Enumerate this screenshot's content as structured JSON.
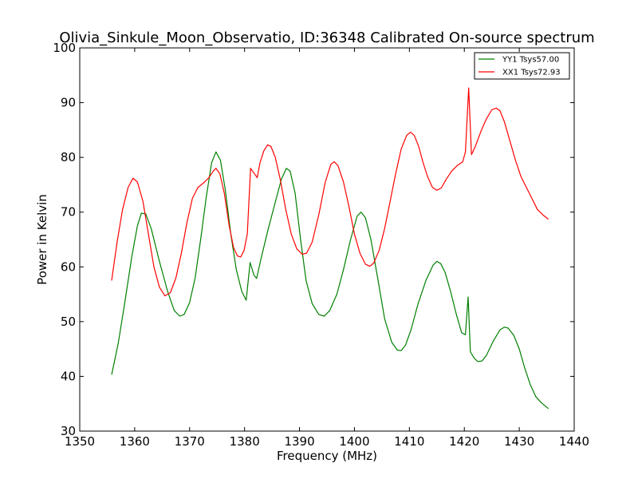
{
  "chart_data": {
    "type": "line",
    "title": "Olivia_Sinkule_Moon_Observatio, ID:36348 Calibrated On-source spectrum",
    "xlabel": "Frequency (MHz)",
    "ylabel": "Power in Kelvin",
    "xlim": [
      1350,
      1440
    ],
    "ylim": [
      30,
      100
    ],
    "xticks": [
      "1350",
      "1360",
      "1370",
      "1380",
      "1390",
      "1400",
      "1410",
      "1420",
      "1430",
      "1440"
    ],
    "yticks": [
      "30",
      "40",
      "50",
      "60",
      "70",
      "80",
      "90",
      "100"
    ],
    "grid": false,
    "legend_position": "top-right",
    "series": [
      {
        "name": "YY1 Tsys57.00",
        "color": "#008000",
        "points": [
          [
            1355.8,
            40.3
          ],
          [
            1357,
            46
          ],
          [
            1358.2,
            53.5
          ],
          [
            1359.5,
            62
          ],
          [
            1360.5,
            67.5
          ],
          [
            1361.2,
            69.8
          ],
          [
            1362,
            69.7
          ],
          [
            1363,
            67
          ],
          [
            1364.5,
            61
          ],
          [
            1366,
            55.5
          ],
          [
            1367.2,
            52
          ],
          [
            1368.2,
            51
          ],
          [
            1369,
            51.3
          ],
          [
            1370,
            53.5
          ],
          [
            1371,
            58
          ],
          [
            1372,
            65
          ],
          [
            1373,
            72.5
          ],
          [
            1374,
            79
          ],
          [
            1374.8,
            81
          ],
          [
            1375.6,
            79.5
          ],
          [
            1376.5,
            74
          ],
          [
            1377.5,
            66
          ],
          [
            1378.5,
            59.5
          ],
          [
            1379.5,
            55.5
          ],
          [
            1380.3,
            53.9
          ],
          [
            1381,
            60.8
          ],
          [
            1381.7,
            58.5
          ],
          [
            1382.2,
            57.9
          ],
          [
            1383,
            61.5
          ],
          [
            1384.2,
            66.5
          ],
          [
            1385.5,
            71.5
          ],
          [
            1386.7,
            76
          ],
          [
            1387.6,
            78
          ],
          [
            1388.3,
            77.5
          ],
          [
            1389.2,
            73.5
          ],
          [
            1390.2,
            65
          ],
          [
            1391.2,
            57.5
          ],
          [
            1392.3,
            53.3
          ],
          [
            1393.5,
            51.3
          ],
          [
            1394.5,
            51
          ],
          [
            1395.5,
            52
          ],
          [
            1396.8,
            55
          ],
          [
            1398,
            59.5
          ],
          [
            1399.3,
            65
          ],
          [
            1400.5,
            69.3
          ],
          [
            1401.2,
            70
          ],
          [
            1402,
            69
          ],
          [
            1403,
            65
          ],
          [
            1404.3,
            57.5
          ],
          [
            1405.5,
            50.5
          ],
          [
            1406.8,
            46.2
          ],
          [
            1407.8,
            44.8
          ],
          [
            1408.5,
            44.7
          ],
          [
            1409.3,
            45.7
          ],
          [
            1410.3,
            48.5
          ],
          [
            1411.5,
            53
          ],
          [
            1413,
            57.5
          ],
          [
            1414.3,
            60.3
          ],
          [
            1415,
            61
          ],
          [
            1415.7,
            60.6
          ],
          [
            1416.5,
            59
          ],
          [
            1417.5,
            55.5
          ],
          [
            1418.5,
            51.5
          ],
          [
            1419.5,
            48
          ],
          [
            1420.2,
            47.6
          ],
          [
            1420.7,
            54.5
          ],
          [
            1421.1,
            44.5
          ],
          [
            1421.8,
            43.3
          ],
          [
            1422.5,
            42.7
          ],
          [
            1423.2,
            42.8
          ],
          [
            1424,
            43.8
          ],
          [
            1425.3,
            46.5
          ],
          [
            1426.5,
            48.5
          ],
          [
            1427.3,
            49
          ],
          [
            1428,
            48.8
          ],
          [
            1429,
            47.5
          ],
          [
            1430,
            45
          ],
          [
            1431,
            41.5
          ],
          [
            1432,
            38.5
          ],
          [
            1433,
            36.3
          ],
          [
            1434,
            35.2
          ],
          [
            1435.3,
            34.1
          ]
        ]
      },
      {
        "name": "XX1 Tsys72.93",
        "color": "#ff0000",
        "points": [
          [
            1355.8,
            57.5
          ],
          [
            1356.8,
            64.5
          ],
          [
            1357.8,
            70.5
          ],
          [
            1358.8,
            74.5
          ],
          [
            1359.7,
            76.2
          ],
          [
            1360.5,
            75.5
          ],
          [
            1361.5,
            72
          ],
          [
            1362.5,
            66
          ],
          [
            1363.5,
            60
          ],
          [
            1364.5,
            56.3
          ],
          [
            1365.5,
            54.7
          ],
          [
            1366.5,
            55.3
          ],
          [
            1367.5,
            58
          ],
          [
            1368.5,
            62.5
          ],
          [
            1369.5,
            68
          ],
          [
            1370.5,
            72.5
          ],
          [
            1371.5,
            74.5
          ],
          [
            1372.5,
            75.3
          ],
          [
            1373.5,
            76.3
          ],
          [
            1374.3,
            77.5
          ],
          [
            1374.8,
            78
          ],
          [
            1375.5,
            77
          ],
          [
            1376.3,
            73.5
          ],
          [
            1377.2,
            67.5
          ],
          [
            1378,
            63.5
          ],
          [
            1378.7,
            62
          ],
          [
            1379.3,
            61.8
          ],
          [
            1379.9,
            63
          ],
          [
            1380.5,
            66
          ],
          [
            1381.1,
            78
          ],
          [
            1381.8,
            77
          ],
          [
            1382.3,
            76.3
          ],
          [
            1382.8,
            79
          ],
          [
            1383.5,
            81.2
          ],
          [
            1384.2,
            82.3
          ],
          [
            1384.8,
            82
          ],
          [
            1385.6,
            80
          ],
          [
            1386.5,
            76
          ],
          [
            1387.5,
            70.5
          ],
          [
            1388.5,
            66
          ],
          [
            1389.5,
            63.3
          ],
          [
            1390.5,
            62.3
          ],
          [
            1391.3,
            62.5
          ],
          [
            1392.3,
            64.5
          ],
          [
            1393.5,
            69.5
          ],
          [
            1394.7,
            75.5
          ],
          [
            1395.7,
            78.7
          ],
          [
            1396.3,
            79.2
          ],
          [
            1397,
            78.5
          ],
          [
            1398,
            75.5
          ],
          [
            1399,
            71
          ],
          [
            1400,
            66
          ],
          [
            1401,
            62.5
          ],
          [
            1402,
            60.5
          ],
          [
            1402.8,
            60.1
          ],
          [
            1403.5,
            60.7
          ],
          [
            1404.5,
            63
          ],
          [
            1405.5,
            67
          ],
          [
            1406.5,
            72
          ],
          [
            1407.5,
            77
          ],
          [
            1408.5,
            81.5
          ],
          [
            1409.5,
            84
          ],
          [
            1410.2,
            84.6
          ],
          [
            1410.9,
            84
          ],
          [
            1411.7,
            82
          ],
          [
            1412.5,
            79
          ],
          [
            1413.3,
            76.5
          ],
          [
            1414.2,
            74.5
          ],
          [
            1415,
            74
          ],
          [
            1415.8,
            74.4
          ],
          [
            1416.7,
            76
          ],
          [
            1417.7,
            77.5
          ],
          [
            1418.7,
            78.5
          ],
          [
            1419.7,
            79.2
          ],
          [
            1420.2,
            81
          ],
          [
            1420.8,
            92.7
          ],
          [
            1421.3,
            80.5
          ],
          [
            1422,
            82
          ],
          [
            1423,
            84.7
          ],
          [
            1424,
            87
          ],
          [
            1425,
            88.7
          ],
          [
            1425.8,
            89
          ],
          [
            1426.5,
            88.5
          ],
          [
            1427.3,
            86.5
          ],
          [
            1428.3,
            83
          ],
          [
            1429.3,
            79.5
          ],
          [
            1430.3,
            76.5
          ],
          [
            1431.3,
            74.5
          ],
          [
            1432.3,
            72.5
          ],
          [
            1433.3,
            70.5
          ],
          [
            1434.3,
            69.5
          ],
          [
            1435.3,
            68.7
          ]
        ]
      }
    ]
  }
}
